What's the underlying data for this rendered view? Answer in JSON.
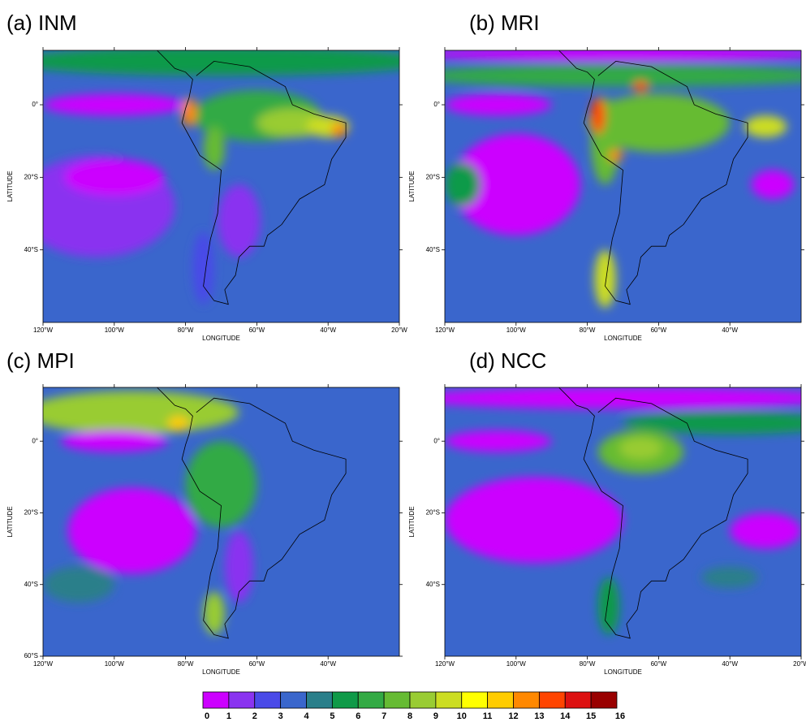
{
  "chart_data": [
    {
      "type": "contour",
      "title": "(a) INM",
      "xlabel": "LONGITUDE",
      "ylabel": "LATITUDE",
      "xlim": [
        -120,
        -20
      ],
      "ylim": [
        -60,
        15
      ],
      "xticks": [
        {
          "value": -120,
          "label": "120°W"
        },
        {
          "value": -100,
          "label": "100°W"
        },
        {
          "value": -80,
          "label": "80°W"
        },
        {
          "value": -60,
          "label": "60°W"
        },
        {
          "value": -40,
          "label": "40°W"
        },
        {
          "value": -20,
          "label": "20°W"
        }
      ],
      "yticks": [
        {
          "value": 0,
          "label": "0°"
        },
        {
          "value": -20,
          "label": "20°S"
        },
        {
          "value": -40,
          "label": "40°S"
        }
      ]
    },
    {
      "type": "contour",
      "title": "(b) MRI",
      "xlabel": "LONGITUDE",
      "ylabel": "LATITUDE",
      "xlim": [
        -120,
        -20
      ],
      "ylim": [
        -60,
        15
      ],
      "xticks": [
        {
          "value": -120,
          "label": "120°W"
        },
        {
          "value": -100,
          "label": "100°W"
        },
        {
          "value": -80,
          "label": "80°W"
        },
        {
          "value": -60,
          "label": "60°W"
        },
        {
          "value": -40,
          "label": "40°W"
        }
      ],
      "yticks": [
        {
          "value": 0,
          "label": "0°"
        },
        {
          "value": -20,
          "label": "20°S"
        },
        {
          "value": -40,
          "label": "40°S"
        }
      ]
    },
    {
      "type": "contour",
      "title": "(c) MPI",
      "xlabel": "LONGITUDE",
      "ylabel": "LATITUDE",
      "xlim": [
        -120,
        -20
      ],
      "ylim": [
        -60,
        15
      ],
      "xticks": [
        {
          "value": -120,
          "label": "120°W"
        },
        {
          "value": -100,
          "label": "100°W"
        },
        {
          "value": -80,
          "label": "80°W"
        },
        {
          "value": -60,
          "label": "60°W"
        },
        {
          "value": -40,
          "label": "40°W"
        }
      ],
      "yticks": [
        {
          "value": 0,
          "label": "0°"
        },
        {
          "value": -20,
          "label": "20°S"
        },
        {
          "value": -40,
          "label": "40°S"
        },
        {
          "value": -60,
          "label": "60°S"
        }
      ]
    },
    {
      "type": "contour",
      "title": "(d) NCC",
      "xlabel": "LONGITUDE",
      "ylabel": "LATITUDE",
      "xlim": [
        -120,
        -20
      ],
      "ylim": [
        -60,
        15
      ],
      "xticks": [
        {
          "value": -120,
          "label": "120°W"
        },
        {
          "value": -100,
          "label": "100°W"
        },
        {
          "value": -80,
          "label": "80°W"
        },
        {
          "value": -60,
          "label": "60°W"
        },
        {
          "value": -40,
          "label": "40°W"
        },
        {
          "value": -20,
          "label": "20°W"
        }
      ],
      "yticks": [
        {
          "value": 0,
          "label": "0°"
        },
        {
          "value": -20,
          "label": "20°S"
        },
        {
          "value": -40,
          "label": "40°S"
        }
      ]
    },
    {
      "type": "colorbar",
      "levels": [
        0,
        1,
        2,
        3,
        4,
        5,
        6,
        7,
        8,
        9,
        10,
        11,
        12,
        13,
        14,
        15,
        16
      ],
      "colors": [
        "#cc00ff",
        "#8a33f0",
        "#4a4ae8",
        "#3a66cc",
        "#2a7f8a",
        "#0f9a48",
        "#33aa44",
        "#66bb33",
        "#99cc33",
        "#ccdd22",
        "#ffff00",
        "#ffcc00",
        "#ff8800",
        "#ff4400",
        "#dd1111",
        "#990000"
      ]
    }
  ]
}
